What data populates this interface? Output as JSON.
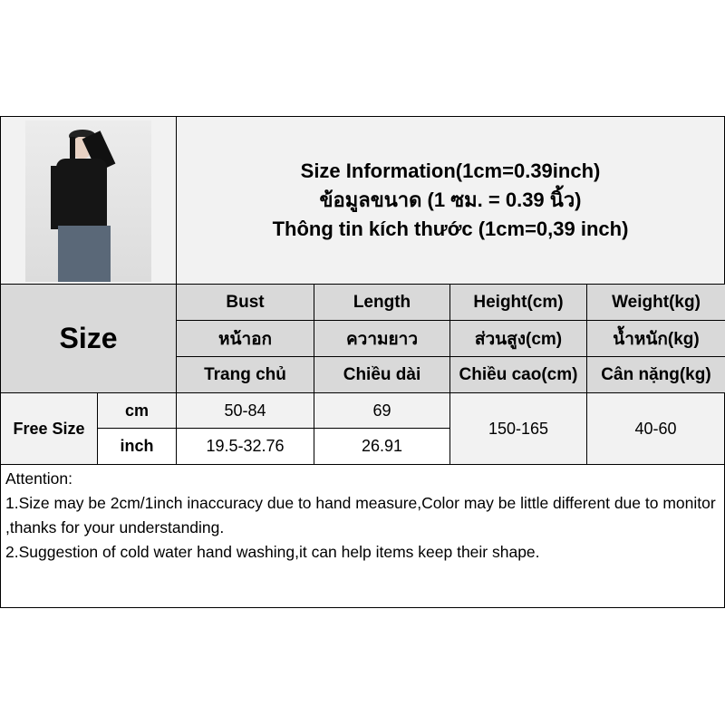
{
  "header": {
    "title_en": "Size Information(1cm=0.39inch)",
    "title_th": "ข้อมูลขนาด (1 ซม. = 0.39 นิ้ว)",
    "title_vi": "Thông tin kích thước (1cm=0,39 inch)"
  },
  "table": {
    "size_label": "Size",
    "columns": [
      {
        "en": "Bust",
        "th": "หน้าอก",
        "vi": "Trang chủ"
      },
      {
        "en": "Length",
        "th": "ความยาว",
        "vi": "Chiều dài"
      },
      {
        "en": "Height(cm)",
        "th": "ส่วนสูง(cm)",
        "vi": "Chiều cao(cm)"
      },
      {
        "en": "Weight(kg)",
        "th": "น้ำหนัก(kg)",
        "vi": "Cân nặng(kg)"
      }
    ],
    "row_label": "Free Size",
    "units": [
      "cm",
      "inch"
    ],
    "cm": {
      "bust": "50-84",
      "length": "69"
    },
    "inch": {
      "bust": "19.5-32.76",
      "length": "26.91"
    },
    "height": "150-165",
    "weight": "40-60"
  },
  "attention": {
    "title": "Attention:",
    "line1": "1.Size may be 2cm/1inch inaccuracy due to hand measure,Color may be little different due to monitor ,thanks for your understanding.",
    "line2": "2.Suggestion of cold water hand washing,it can help items keep their shape."
  }
}
